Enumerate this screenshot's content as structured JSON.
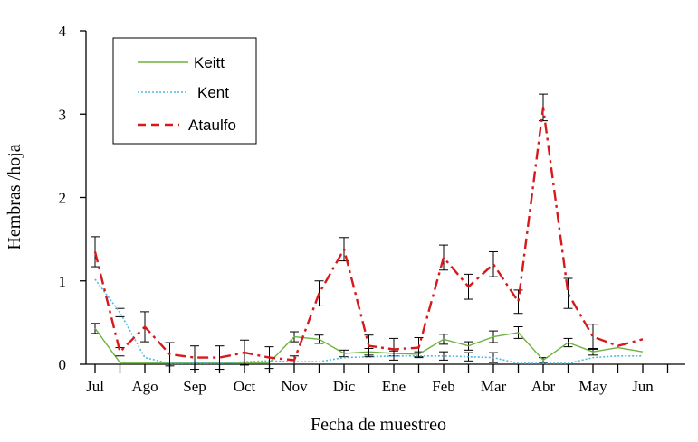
{
  "chart_data": {
    "type": "line",
    "xlabel": "Fecha de muestreo",
    "ylabel": "Hembras /hoja",
    "ylim": [
      0,
      4
    ],
    "yticks": [
      0,
      1,
      2,
      3,
      4
    ],
    "xlim": [
      0,
      23
    ],
    "month_labels": [
      {
        "label": "Jul",
        "x": 0
      },
      {
        "label": "Ago",
        "x": 2
      },
      {
        "label": "Sep",
        "x": 4
      },
      {
        "label": "Oct",
        "x": 6
      },
      {
        "label": "Nov",
        "x": 8
      },
      {
        "label": "Dic",
        "x": 10
      },
      {
        "label": "Ene",
        "x": 12
      },
      {
        "label": "Feb",
        "x": 14
      },
      {
        "label": "Mar",
        "x": 16
      },
      {
        "label": "Abr",
        "x": 18
      },
      {
        "label": "May",
        "x": 20
      },
      {
        "label": "Jun",
        "x": 22
      }
    ],
    "grid": false,
    "legend_position": "top-left",
    "series": [
      {
        "name": "Keitt",
        "color": "#6db33f",
        "dash": "solid",
        "x": [
          0,
          1,
          2,
          3,
          4,
          5,
          6,
          7,
          8,
          9,
          10,
          11,
          12,
          13,
          14,
          15,
          16,
          17,
          18,
          19,
          20,
          21,
          22
        ],
        "y": [
          0.43,
          0.02,
          0.02,
          0.02,
          0.02,
          0.02,
          0.02,
          0.02,
          0.33,
          0.3,
          0.13,
          0.15,
          0.13,
          0.12,
          0.3,
          0.22,
          0.33,
          0.38,
          0.05,
          0.26,
          0.15,
          0.2,
          0.15
        ],
        "err": [
          0.06,
          0,
          0,
          0,
          0,
          0,
          0,
          0,
          0.06,
          0.05,
          0.04,
          0.04,
          0.03,
          0.03,
          0.06,
          0.05,
          0.07,
          0.07,
          0.03,
          0.05,
          0.04,
          0,
          0
        ]
      },
      {
        "name": "Kent",
        "color": "#4db8e6",
        "dash": "dotted",
        "x": [
          0,
          1,
          2,
          3,
          4,
          5,
          6,
          7,
          8,
          9,
          10,
          11,
          12,
          13,
          14,
          15,
          16,
          17,
          18,
          19,
          20,
          21,
          22
        ],
        "y": [
          1.02,
          0.62,
          0.08,
          0.01,
          0.01,
          0.01,
          0.03,
          0.04,
          0.03,
          0.03,
          0.08,
          0.09,
          0.1,
          0.1,
          0.1,
          0.09,
          0.08,
          0.01,
          0.01,
          0.01,
          0.08,
          0.1,
          0.1
        ],
        "err": [
          0,
          0.05,
          0,
          0,
          0,
          0,
          0,
          0,
          0,
          0,
          0,
          0,
          0,
          0,
          0.05,
          0.05,
          0.06,
          0,
          0,
          0,
          0,
          0,
          0
        ]
      },
      {
        "name": "Ataulfo",
        "color": "#d7191c",
        "dash": "dashdot",
        "x": [
          0,
          1,
          2,
          3,
          4,
          5,
          6,
          7,
          8,
          9,
          10,
          11,
          12,
          13,
          14,
          15,
          16,
          17,
          18,
          19,
          20,
          21,
          22
        ],
        "y": [
          1.35,
          0.15,
          0.45,
          0.12,
          0.08,
          0.08,
          0.14,
          0.08,
          0.05,
          0.85,
          1.38,
          0.22,
          0.18,
          0.2,
          1.28,
          0.93,
          1.2,
          0.75,
          3.08,
          0.85,
          0.33,
          0.22,
          0.3
        ],
        "err": [
          0.18,
          0.05,
          0.18,
          0.14,
          0.14,
          0.14,
          0.15,
          0.13,
          0.05,
          0.15,
          0.14,
          0.13,
          0.13,
          0.12,
          0.15,
          0.15,
          0.15,
          0.14,
          0.16,
          0.18,
          0.15,
          0,
          0
        ]
      }
    ]
  }
}
